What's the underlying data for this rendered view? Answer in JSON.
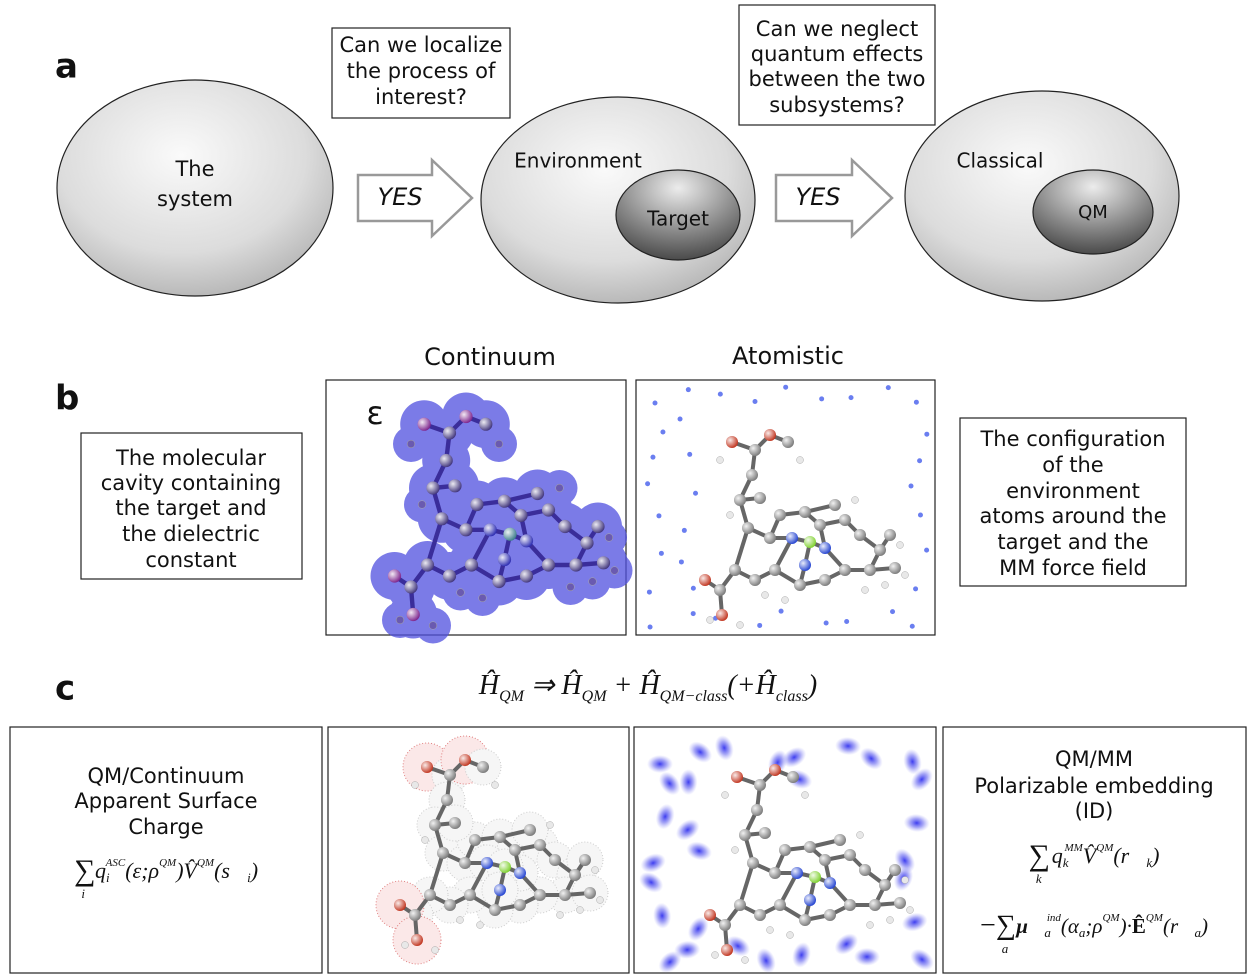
{
  "panel_a": {
    "label": "a",
    "question_1": [
      "Can we localize",
      "the process of",
      "interest?"
    ],
    "system": [
      "The",
      "system"
    ],
    "arrow_1": "YES",
    "environment": "Environment",
    "target": "Target",
    "arrow_2": "YES",
    "question_2": [
      "Can we neglect",
      "quantum effects",
      "between the two",
      "subsystems?"
    ],
    "classical": "Classical",
    "qm": "QM"
  },
  "panel_b": {
    "label": "b",
    "continuum_title": "Continuum",
    "atomistic_title": "Atomistic",
    "epsilon": "ε",
    "continuum_description": [
      "The molecular",
      "cavity containing",
      "the target and",
      "the dielectric",
      "constant"
    ],
    "atomistic_description": [
      "The configuration",
      "of the",
      "environment",
      "atoms around the",
      "target and the",
      "MM force field"
    ]
  },
  "panel_c": {
    "label": "c",
    "hamiltonian": [
      "Ĥ",
      "QM",
      " ⇒ Ĥ",
      "QM",
      " + Ĥ",
      "QM−class",
      "(+Ĥ",
      "class",
      ")"
    ],
    "continuum_box": {
      "title": [
        "QM/Continuum",
        "Apparent Surface",
        "Charge"
      ],
      "formula": [
        "∑",
        "i",
        "q",
        "i",
        "ASC",
        "(ε;ρ",
        "QM",
        ")V̂",
        "QM",
        "(s⃗",
        "i",
        ")"
      ]
    },
    "mm_box": {
      "title": [
        "QM/MM",
        "Polarizable embedding",
        "(ID)"
      ],
      "formula_1": [
        "∑",
        "k",
        "q",
        "k",
        "MM",
        "V̂",
        "QM",
        "(r⃗",
        "k",
        ")"
      ],
      "formula_2": [
        "−∑",
        "a",
        "μ⃗",
        "a",
        "ind",
        "(α",
        "a",
        ";ρ",
        "QM",
        ")·",
        "Ê",
        "QM",
        "(r⃗",
        "a",
        ")"
      ]
    }
  }
}
